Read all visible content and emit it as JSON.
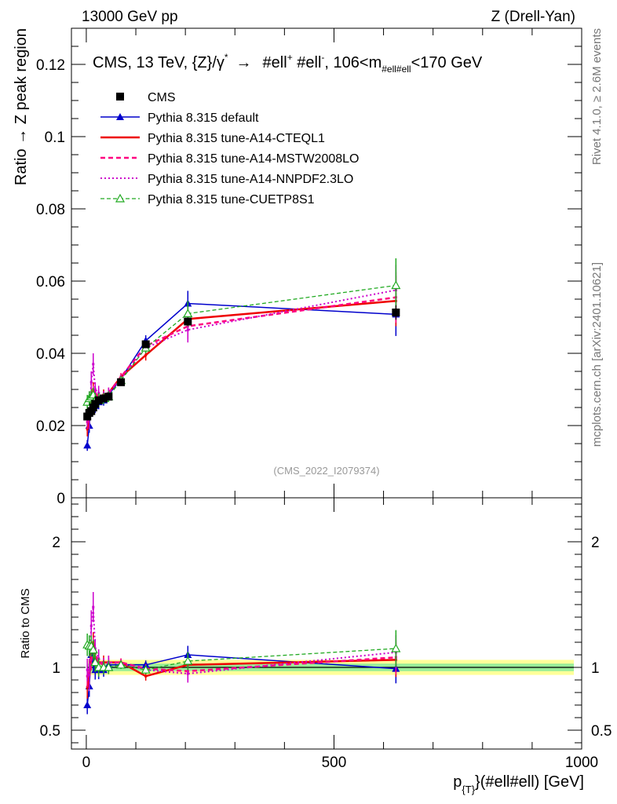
{
  "header": {
    "left": "13000 GeV pp",
    "right": "Z (Drell-Yan)"
  },
  "side_labels": {
    "rivet": "Rivet 4.1.0, ≥ 2.6M events",
    "mcplots": "mcplots.cern.ch [arXiv:2401.10621]"
  },
  "chart_data": [
    {
      "panel": "main",
      "type": "scatter",
      "title": "CMS, 13 TeV, {Z}/γ* → #ell+ #ell-, 106<m#ell#ell<170 GeV",
      "title_parts": {
        "a": "CMS, 13 TeV, {Z}/γ",
        "a_sup": "*",
        "arrow": "→",
        "b": "#ell",
        "b_sup": "+",
        "c": " #ell",
        "c_sup": "-",
        "d": ", 106<m",
        "d_sub": "#ell#ell",
        "e": "<170 GeV"
      },
      "ylabel": "Ratio → Z peak region",
      "watermark": "(CMS_2022_I2079374)",
      "xlim": [
        -30,
        1000
      ],
      "ylim": [
        0,
        0.13
      ],
      "y_ticks": [
        0,
        0.02,
        0.04,
        0.06,
        0.08,
        0.1,
        0.12
      ],
      "y_tick_labels": [
        "0",
        "0.02",
        "0.04",
        "0.06",
        "0.08",
        "0.1",
        "0.12"
      ],
      "legend_position": "top-left",
      "x": [
        2,
        6,
        10,
        14,
        18,
        25,
        35,
        45,
        70,
        120,
        205,
        625
      ],
      "series": [
        {
          "name": "CMS",
          "color": "#000000",
          "style": "data",
          "values": [
            0.0225,
            0.0235,
            0.024,
            0.025,
            0.026,
            0.027,
            0.0275,
            0.028,
            0.032,
            0.0425,
            0.0488,
            0.0513
          ],
          "errors": [
            0.001,
            0.001,
            0.001,
            0.001,
            0.001,
            0.001,
            0.001,
            0.001,
            0.001,
            0.001,
            0.001,
            0.002
          ]
        },
        {
          "name": "Pythia 8.315 default",
          "color": "#0000cc",
          "style": "triangle",
          "values": [
            0.0145,
            0.02,
            0.0265,
            0.0265,
            0.0255,
            0.0265,
            0.027,
            0.0285,
            0.033,
            0.0435,
            0.0538,
            0.0508
          ],
          "errors": [
            0.0015,
            0.002,
            0.002,
            0.002,
            0.002,
            0.002,
            0.0015,
            0.0015,
            0.001,
            0.0015,
            0.0035,
            0.006
          ]
        },
        {
          "name": "Pythia 8.315 tune-A14-CTEQL1",
          "color": "#ee0000",
          "style": "solid",
          "values": [
            0.019,
            0.022,
            0.027,
            0.03,
            0.028,
            0.028,
            0.0285,
            0.029,
            0.0335,
            0.0395,
            0.0495,
            0.0545
          ],
          "errors": [
            0.002,
            0.002,
            0.002,
            0.002,
            0.002,
            0.002,
            0.0015,
            0.0015,
            0.001,
            0.0015,
            0.0035,
            0.007
          ]
        },
        {
          "name": "Pythia 8.315 tune-A14-MSTW2008LO",
          "color": "#ff0080",
          "style": "dashed",
          "values": [
            0.021,
            0.023,
            0.0255,
            0.029,
            0.029,
            0.028,
            0.028,
            0.029,
            0.0335,
            0.042,
            0.0475,
            0.0555
          ],
          "errors": [
            0.002,
            0.002,
            0.002,
            0.002,
            0.002,
            0.002,
            0.0015,
            0.0015,
            0.001,
            0.0015,
            0.0035,
            0.007
          ]
        },
        {
          "name": "Pythia 8.315 tune-A14-NNPDF2.3LO",
          "color": "#cc00cc",
          "style": "dotted",
          "values": [
            0.022,
            0.022,
            0.032,
            0.037,
            0.03,
            0.029,
            0.028,
            0.029,
            0.033,
            0.0415,
            0.0465,
            0.0575
          ],
          "errors": [
            0.002,
            0.003,
            0.003,
            0.003,
            0.002,
            0.002,
            0.0015,
            0.0015,
            0.001,
            0.0015,
            0.0035,
            0.007
          ]
        },
        {
          "name": "Pythia 8.315 tune-CUETP8S1",
          "color": "#22aa22",
          "style": "triangle-open-dashed",
          "values": [
            0.0265,
            0.0275,
            0.028,
            0.0285,
            0.027,
            0.027,
            0.0275,
            0.028,
            0.0325,
            0.0415,
            0.051,
            0.0588
          ],
          "errors": [
            0.002,
            0.002,
            0.002,
            0.002,
            0.002,
            0.002,
            0.0015,
            0.0015,
            0.001,
            0.0015,
            0.0035,
            0.0075
          ]
        }
      ]
    },
    {
      "panel": "ratio",
      "type": "line",
      "ylabel": "Ratio to CMS",
      "xlabel": "p{T}(#ell#ell) [GeV]",
      "xlabel_parts": {
        "p": "p",
        "sub": "{T}",
        "rest": "}(#ell#ell) [GeV]"
      },
      "xlim": [
        -30,
        1000
      ],
      "ylim": [
        0.35,
        2.35
      ],
      "y_ticks": [
        0.5,
        1,
        2
      ],
      "y_tick_labels": [
        "0.5",
        "1",
        "2"
      ],
      "x_ticks": [
        0,
        500,
        1000
      ],
      "x_tick_labels": [
        "0",
        "500",
        "1000"
      ],
      "uncertainty_band": {
        "inner": 0.03,
        "outer": 0.06,
        "inner_color": "#99ee99",
        "outer_color": "#ffff99"
      },
      "x": [
        2,
        6,
        10,
        14,
        18,
        25,
        35,
        45,
        70,
        120,
        205,
        625
      ],
      "series": [
        {
          "name": "Pythia 8.315 default",
          "color": "#0000cc",
          "style": "triangle",
          "values": [
            0.7,
            0.85,
            1.1,
            1.06,
            0.98,
            0.98,
            0.98,
            1.02,
            1.02,
            1.02,
            1.1,
            0.99
          ]
        },
        {
          "name": "Pythia 8.315 tune-A14-CTEQL1",
          "color": "#ee0000",
          "style": "solid",
          "values": [
            0.84,
            0.94,
            1.12,
            1.2,
            1.08,
            1.04,
            1.04,
            1.04,
            1.04,
            0.93,
            1.02,
            1.06
          ]
        },
        {
          "name": "Pythia 8.315 tune-A14-MSTW2008LO",
          "color": "#ff0080",
          "style": "dashed",
          "values": [
            0.93,
            0.98,
            1.06,
            1.16,
            1.11,
            1.04,
            1.02,
            1.04,
            1.04,
            0.99,
            0.97,
            1.08
          ]
        },
        {
          "name": "Pythia 8.315 tune-A14-NNPDF2.3LO",
          "color": "#cc00cc",
          "style": "dotted",
          "values": [
            0.98,
            0.94,
            1.33,
            1.48,
            1.15,
            1.07,
            1.02,
            1.04,
            1.03,
            0.98,
            0.95,
            1.12
          ]
        },
        {
          "name": "Pythia 8.315 tune-CUETP8S1",
          "color": "#22aa22",
          "style": "triangle-open-dashed",
          "values": [
            1.18,
            1.17,
            1.17,
            1.14,
            1.04,
            1.0,
            1.0,
            1.0,
            1.02,
            0.98,
            1.05,
            1.15
          ]
        }
      ]
    }
  ]
}
